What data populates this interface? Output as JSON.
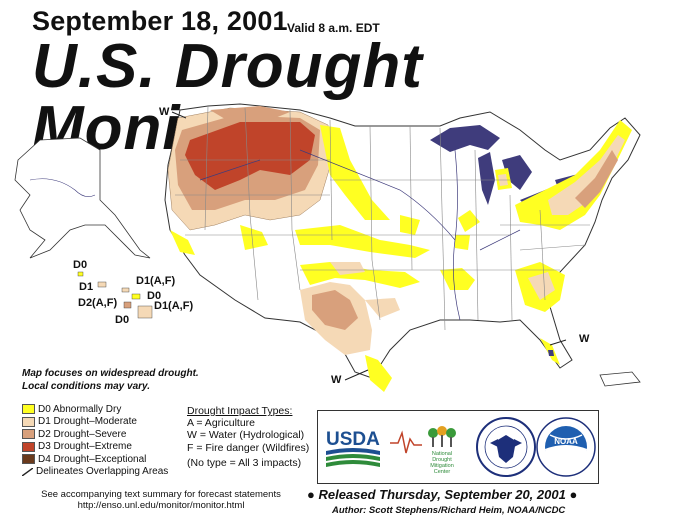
{
  "header": {
    "date": "September 18, 2001",
    "valid_time": "Valid 8 a.m. EDT",
    "title": "U.S. Drought Monitor"
  },
  "map": {
    "region_labels": {
      "w_northwest": "W",
      "w_southeast": "W",
      "w_southwest": "W",
      "hawaii_d0_top": "D0",
      "hawaii_d1": "D1",
      "hawaii_d1af": "D1(A,F)",
      "hawaii_d0_mid": "D0",
      "hawaii_d2af": "D2(A,F)",
      "hawaii_d0_bottom": "D0",
      "hawaii_d1af_2": "D1(A,F)"
    },
    "colors": {
      "water": "#3f3c7c",
      "state_line": "#888888",
      "d0": "#ffff00",
      "d1": "#fcd37f",
      "d2": "#ffaa00",
      "d3": "#e60000",
      "d4": "#730000"
    }
  },
  "note": {
    "line1": "Map focuses on widespread drought.",
    "line2": "Local conditions may vary."
  },
  "legend": {
    "items": [
      {
        "label": "D0 Abnormally Dry",
        "color": "#ffff22"
      },
      {
        "label": "D1 Drought–Moderate",
        "color": "#f5d9b6"
      },
      {
        "label": "D2 Drought–Severe",
        "color": "#d8a07c"
      },
      {
        "label": "D3 Drought–Extreme",
        "color": "#c0442a"
      },
      {
        "label": "D4 Drought–Exceptional",
        "color": "#6a3a1c"
      }
    ],
    "overlap_label": "Delineates Overlapping Areas"
  },
  "impacts": {
    "title": "Drought Impact Types:",
    "a": "A = Agriculture",
    "w": "W = Water (Hydrological)",
    "f": "F = Fire danger (Wildfires)",
    "none": "(No type = All 3 impacts)"
  },
  "logos": {
    "usda": "USDA",
    "ndmc_line1": "National",
    "ndmc_line2": "Drought",
    "ndmc_line3": "Mitigation",
    "ndmc_line4": "Center",
    "noaa": "NOAA"
  },
  "footer": {
    "accompany_line1": "See accompanying text summary for forecast statements",
    "accompany_line2": "http://enso.unl.edu/monitor/monitor.html",
    "released": "Released Thursday, September 20, 2001",
    "author": "Author:  Scott Stephens/Richard Heim, NOAA/NCDC"
  }
}
